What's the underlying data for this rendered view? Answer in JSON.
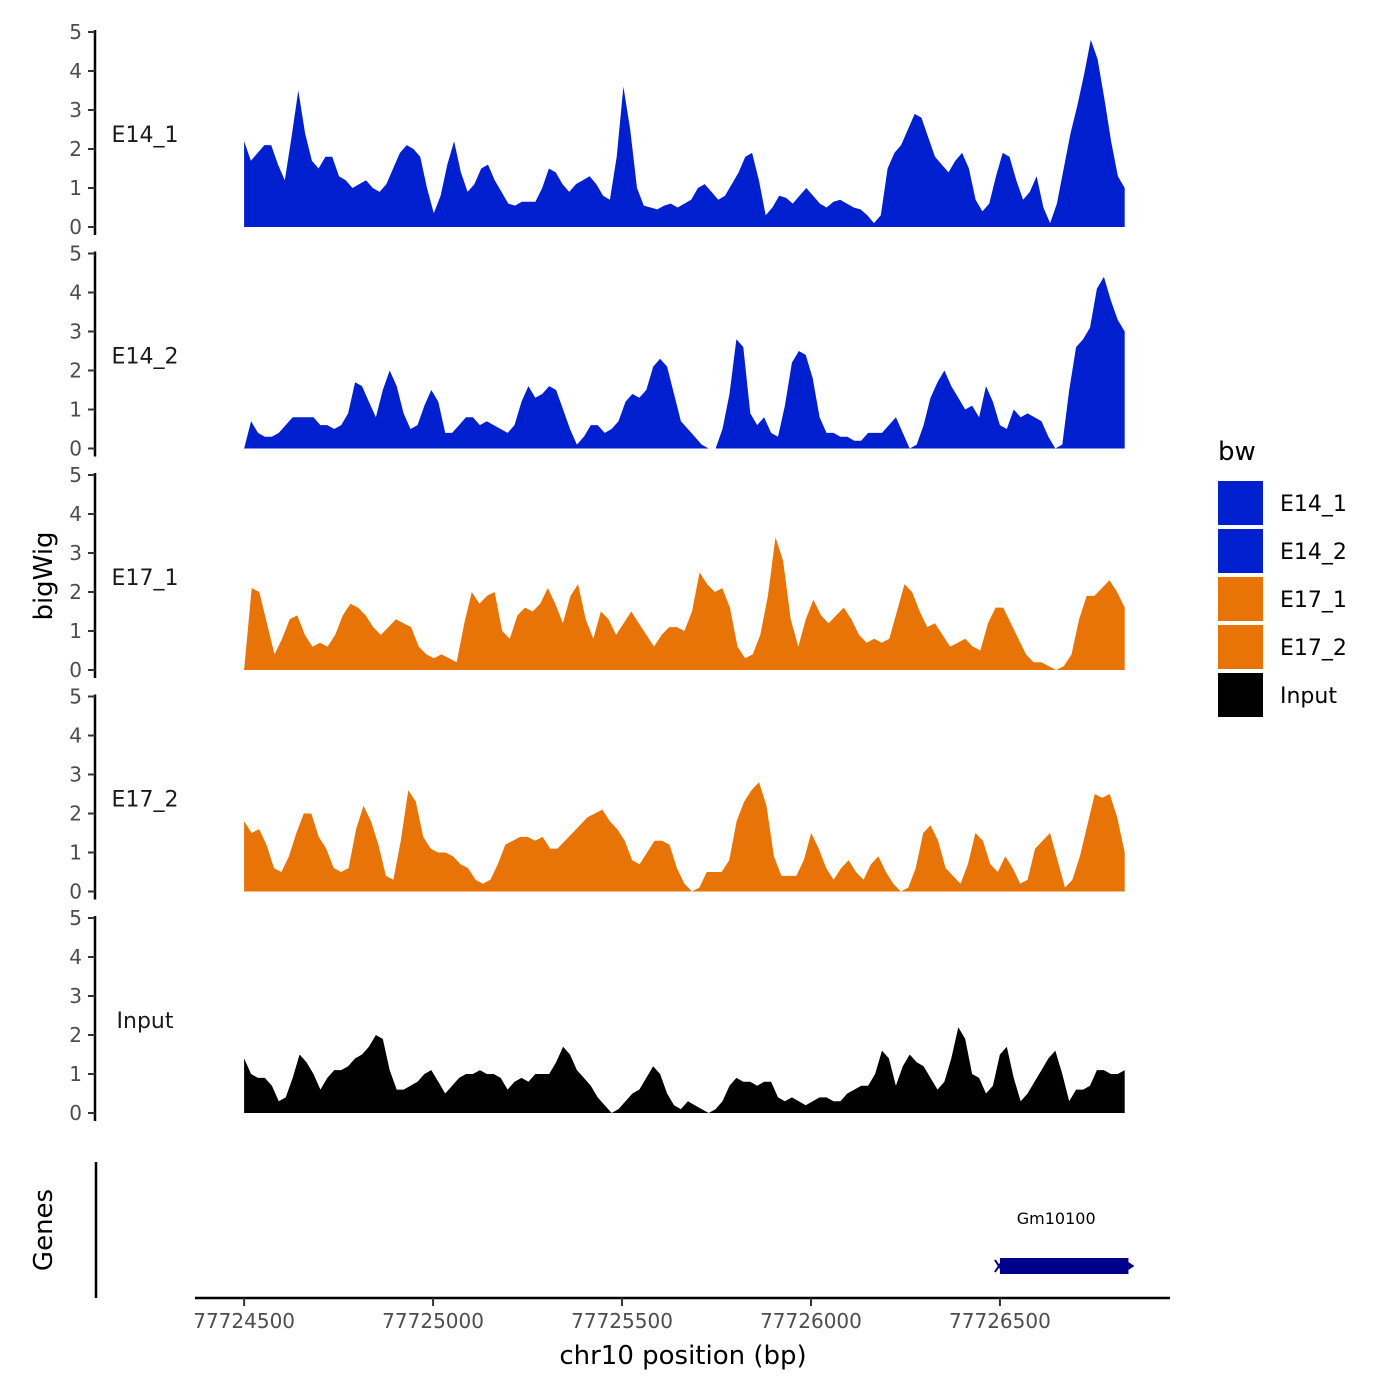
{
  "chart_data": {
    "type": "area",
    "ylabel": "bigWig",
    "genes_label": "Genes",
    "xlabel": "chr10 position (bp)",
    "xlim": [
      77724370,
      77726950
    ],
    "x_ticks": [
      77724500,
      77725000,
      77725500,
      77726000,
      77726500
    ],
    "x_tick_labels": [
      "77724500",
      "77725000",
      "77725500",
      "77726000",
      "77726500"
    ],
    "ylim": [
      0,
      5
    ],
    "y_ticks": [
      0,
      1,
      2,
      3,
      4,
      5
    ],
    "y_tick_labels": [
      "0",
      "1",
      "2",
      "3",
      "4",
      "5"
    ],
    "legend": {
      "title": "bw",
      "position": "right",
      "items": [
        {
          "label": "E14_1",
          "color": "#0020D0"
        },
        {
          "label": "E14_2",
          "color": "#0020D0"
        },
        {
          "label": "E17_1",
          "color": "#E87306"
        },
        {
          "label": "E17_2",
          "color": "#E87306"
        },
        {
          "label": "Input",
          "color": "#000000"
        }
      ]
    },
    "series": [
      {
        "name": "E14_1",
        "color": "#0020D0",
        "x_start": 77724500,
        "x_end": 77726830,
        "values": [
          2.2,
          1.7,
          1.9,
          2.1,
          2.1,
          1.6,
          1.2,
          2.3,
          3.5,
          2.4,
          1.7,
          1.5,
          1.8,
          1.8,
          1.3,
          1.2,
          1.0,
          1.1,
          1.2,
          1.0,
          0.9,
          1.1,
          1.5,
          1.9,
          2.1,
          2.0,
          1.8,
          1.0,
          0.35,
          0.8,
          1.6,
          2.2,
          1.4,
          0.9,
          1.1,
          1.5,
          1.6,
          1.2,
          0.9,
          0.6,
          0.55,
          0.65,
          0.65,
          0.65,
          1.0,
          1.5,
          1.4,
          1.1,
          0.9,
          1.1,
          1.2,
          1.3,
          1.1,
          0.8,
          0.7,
          1.8,
          3.6,
          2.5,
          1.0,
          0.55,
          0.5,
          0.45,
          0.55,
          0.6,
          0.5,
          0.6,
          0.7,
          1.0,
          1.1,
          0.9,
          0.7,
          0.8,
          1.1,
          1.4,
          1.8,
          1.9,
          1.2,
          0.3,
          0.5,
          0.8,
          0.75,
          0.6,
          0.8,
          1.0,
          0.8,
          0.6,
          0.5,
          0.65,
          0.7,
          0.6,
          0.5,
          0.45,
          0.3,
          0.1,
          0.3,
          1.5,
          1.9,
          2.1,
          2.5,
          2.9,
          2.8,
          2.3,
          1.8,
          1.6,
          1.4,
          1.7,
          1.9,
          1.5,
          0.7,
          0.4,
          0.6,
          1.3,
          1.9,
          1.8,
          1.2,
          0.7,
          0.9,
          1.3,
          0.5,
          0.1,
          0.6,
          1.5,
          2.4,
          3.1,
          3.9,
          4.8,
          4.3,
          3.3,
          2.2,
          1.3,
          1.0
        ]
      },
      {
        "name": "E14_2",
        "color": "#0020D0",
        "x_start": 77724500,
        "x_end": 77726830,
        "values": [
          0.0,
          0.7,
          0.4,
          0.3,
          0.3,
          0.4,
          0.6,
          0.8,
          0.8,
          0.8,
          0.8,
          0.6,
          0.6,
          0.5,
          0.6,
          0.9,
          1.7,
          1.6,
          1.2,
          0.8,
          1.5,
          2.0,
          1.6,
          0.9,
          0.5,
          0.6,
          1.1,
          1.5,
          1.2,
          0.4,
          0.4,
          0.6,
          0.8,
          0.8,
          0.6,
          0.7,
          0.6,
          0.5,
          0.4,
          0.6,
          1.2,
          1.6,
          1.3,
          1.4,
          1.6,
          1.5,
          1.0,
          0.5,
          0.1,
          0.3,
          0.6,
          0.6,
          0.4,
          0.5,
          0.7,
          1.2,
          1.4,
          1.3,
          1.5,
          2.1,
          2.3,
          2.1,
          1.4,
          0.7,
          0.5,
          0.3,
          0.1,
          0.0,
          0.0,
          0.5,
          1.4,
          2.8,
          2.6,
          0.9,
          0.6,
          0.8,
          0.4,
          0.3,
          1.1,
          2.2,
          2.5,
          2.4,
          1.8,
          0.8,
          0.4,
          0.4,
          0.3,
          0.3,
          0.2,
          0.2,
          0.4,
          0.4,
          0.4,
          0.6,
          0.8,
          0.4,
          0.0,
          0.1,
          0.6,
          1.3,
          1.7,
          2.0,
          1.6,
          1.3,
          1.0,
          1.1,
          0.8,
          1.6,
          1.2,
          0.6,
          0.5,
          1.0,
          0.8,
          0.9,
          0.8,
          0.7,
          0.3,
          0.0,
          0.1,
          1.5,
          2.6,
          2.8,
          3.1,
          4.1,
          4.4,
          3.8,
          3.3,
          3.0
        ]
      },
      {
        "name": "E17_1",
        "color": "#E87306",
        "x_start": 77724500,
        "x_end": 77726830,
        "values": [
          0.0,
          2.1,
          2.0,
          1.2,
          0.4,
          0.8,
          1.3,
          1.4,
          0.9,
          0.6,
          0.7,
          0.6,
          0.9,
          1.4,
          1.7,
          1.6,
          1.4,
          1.1,
          0.9,
          1.1,
          1.3,
          1.2,
          1.1,
          0.6,
          0.4,
          0.3,
          0.4,
          0.3,
          0.2,
          1.2,
          2.0,
          1.7,
          1.9,
          2.0,
          1.0,
          0.8,
          1.4,
          1.6,
          1.5,
          1.7,
          2.1,
          1.7,
          1.2,
          1.9,
          2.2,
          1.3,
          0.8,
          1.5,
          1.3,
          0.9,
          1.2,
          1.5,
          1.2,
          0.9,
          0.6,
          0.9,
          1.1,
          1.1,
          1.0,
          1.5,
          2.5,
          2.2,
          2.0,
          2.1,
          1.6,
          0.6,
          0.3,
          0.4,
          0.9,
          1.9,
          3.4,
          2.8,
          1.3,
          0.6,
          1.3,
          1.8,
          1.4,
          1.2,
          1.4,
          1.6,
          1.3,
          0.9,
          0.7,
          0.8,
          0.7,
          0.8,
          1.5,
          2.2,
          2.0,
          1.5,
          1.1,
          1.2,
          0.9,
          0.6,
          0.7,
          0.8,
          0.6,
          0.5,
          1.2,
          1.6,
          1.6,
          1.2,
          0.8,
          0.4,
          0.2,
          0.2,
          0.1,
          0.0,
          0.1,
          0.4,
          1.3,
          1.9,
          1.9,
          2.1,
          2.3,
          2.0,
          1.6
        ]
      },
      {
        "name": "E17_2",
        "color": "#E87306",
        "x_start": 77724500,
        "x_end": 77726830,
        "values": [
          1.8,
          1.5,
          1.6,
          1.2,
          0.6,
          0.5,
          0.9,
          1.5,
          2.0,
          2.0,
          1.4,
          1.1,
          0.6,
          0.5,
          0.6,
          1.6,
          2.2,
          1.8,
          1.2,
          0.4,
          0.3,
          1.3,
          2.6,
          2.3,
          1.4,
          1.1,
          1.0,
          1.0,
          0.9,
          0.7,
          0.6,
          0.3,
          0.2,
          0.3,
          0.7,
          1.2,
          1.3,
          1.4,
          1.4,
          1.3,
          1.4,
          1.1,
          1.1,
          1.3,
          1.5,
          1.7,
          1.9,
          2.0,
          2.1,
          1.8,
          1.6,
          1.3,
          0.8,
          0.7,
          1.0,
          1.3,
          1.3,
          1.2,
          0.6,
          0.2,
          0.0,
          0.1,
          0.5,
          0.5,
          0.5,
          0.8,
          1.8,
          2.3,
          2.6,
          2.8,
          2.2,
          0.9,
          0.4,
          0.4,
          0.4,
          0.8,
          1.5,
          1.1,
          0.6,
          0.3,
          0.6,
          0.8,
          0.5,
          0.3,
          0.7,
          0.9,
          0.5,
          0.2,
          0.0,
          0.1,
          0.6,
          1.5,
          1.7,
          1.3,
          0.6,
          0.4,
          0.2,
          0.7,
          1.5,
          1.3,
          0.7,
          0.5,
          0.9,
          0.6,
          0.2,
          0.3,
          1.1,
          1.3,
          1.5,
          0.8,
          0.1,
          0.3,
          0.9,
          1.7,
          2.5,
          2.4,
          2.5,
          1.9,
          1.0
        ]
      },
      {
        "name": "Input",
        "color": "#000000",
        "x_start": 77724500,
        "x_end": 77726830,
        "values": [
          1.4,
          1.0,
          0.9,
          0.9,
          0.7,
          0.3,
          0.4,
          0.9,
          1.5,
          1.3,
          1.0,
          0.6,
          0.9,
          1.1,
          1.1,
          1.2,
          1.4,
          1.5,
          1.7,
          2.0,
          1.9,
          1.1,
          0.6,
          0.6,
          0.7,
          0.8,
          1.0,
          1.1,
          0.8,
          0.5,
          0.7,
          0.9,
          1.0,
          1.0,
          1.1,
          1.0,
          1.0,
          0.9,
          0.6,
          0.8,
          0.9,
          0.8,
          1.0,
          1.0,
          1.0,
          1.3,
          1.7,
          1.5,
          1.1,
          0.9,
          0.7,
          0.4,
          0.2,
          0.0,
          0.1,
          0.3,
          0.5,
          0.6,
          0.9,
          1.2,
          1.0,
          0.5,
          0.2,
          0.1,
          0.3,
          0.2,
          0.1,
          0.0,
          0.1,
          0.3,
          0.7,
          0.9,
          0.8,
          0.8,
          0.7,
          0.8,
          0.8,
          0.4,
          0.3,
          0.4,
          0.3,
          0.2,
          0.3,
          0.4,
          0.4,
          0.3,
          0.3,
          0.5,
          0.6,
          0.7,
          0.7,
          1.0,
          1.6,
          1.4,
          0.7,
          1.2,
          1.5,
          1.3,
          1.2,
          0.9,
          0.6,
          0.8,
          1.4,
          2.2,
          1.9,
          1.0,
          0.9,
          0.5,
          0.7,
          1.5,
          1.7,
          0.9,
          0.3,
          0.5,
          0.8,
          1.1,
          1.4,
          1.6,
          1.0,
          0.3,
          0.6,
          0.6,
          0.7,
          1.1,
          1.1,
          1.0,
          1.0,
          1.1
        ]
      }
    ],
    "genes": [
      {
        "name": "Gm10100",
        "start": 77726500,
        "end": 77726840,
        "strand": "+",
        "color": "#00008B"
      }
    ]
  }
}
